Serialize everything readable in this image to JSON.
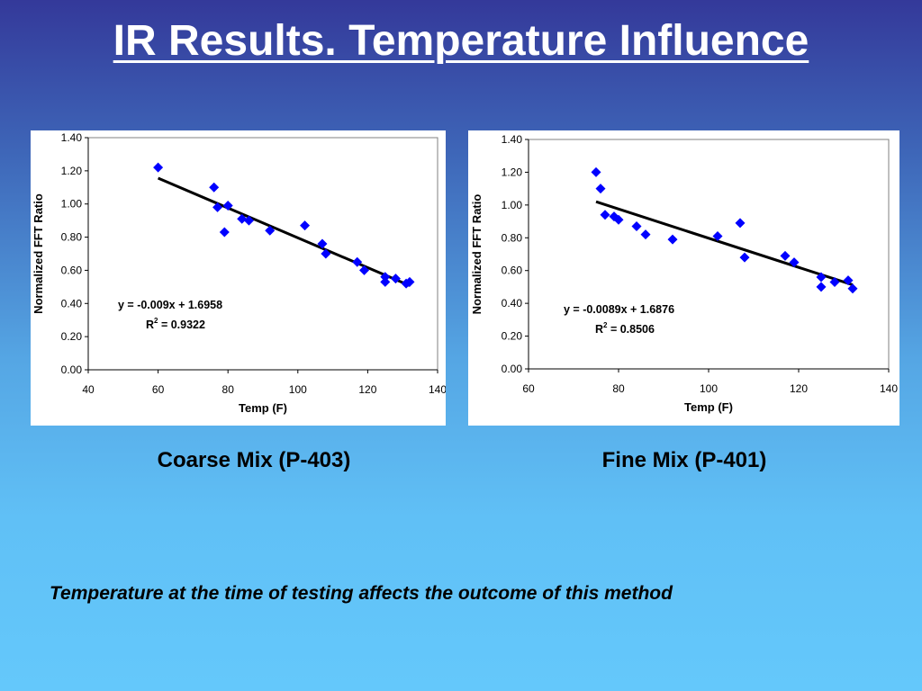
{
  "slide": {
    "title": "IR Results. Temperature Influence",
    "caption_left": "Coarse Mix (P-403)",
    "caption_right": "Fine Mix (P-401)",
    "footnote": "Temperature at the time of testing affects the outcome of this method"
  },
  "colors": {
    "marker": "#0000ff",
    "trendline": "#000000"
  },
  "chart_data": [
    {
      "type": "scatter",
      "title": "",
      "xlabel": "Temp (F)",
      "ylabel": "Normalized FFT Ratio",
      "xlim": [
        40,
        140
      ],
      "ylim": [
        0,
        1.4
      ],
      "xticks": [
        40,
        60,
        80,
        100,
        120,
        140
      ],
      "yticks": [
        0,
        0.2,
        0.4,
        0.6,
        0.8,
        1.0,
        1.2,
        1.4
      ],
      "x_tick_labels": [
        "40",
        "60",
        "80",
        "100",
        "120",
        "140"
      ],
      "y_tick_labels": [
        "0.00",
        "0.20",
        "0.40",
        "0.60",
        "0.80",
        "1.00",
        "1.20",
        "1.40"
      ],
      "grid": false,
      "points": [
        [
          60,
          1.22
        ],
        [
          76,
          1.1
        ],
        [
          77,
          0.98
        ],
        [
          79,
          0.83
        ],
        [
          80,
          0.99
        ],
        [
          84,
          0.91
        ],
        [
          86,
          0.9
        ],
        [
          92,
          0.84
        ],
        [
          102,
          0.87
        ],
        [
          107,
          0.76
        ],
        [
          108,
          0.7
        ],
        [
          117,
          0.65
        ],
        [
          119,
          0.6
        ],
        [
          125,
          0.56
        ],
        [
          125,
          0.53
        ],
        [
          128,
          0.55
        ],
        [
          131,
          0.52
        ],
        [
          132,
          0.53
        ]
      ],
      "trendline": {
        "slope": -0.009,
        "intercept": 1.6958,
        "x_range": [
          60,
          132
        ]
      },
      "equation": "y = -0.009x + 1.6958",
      "r2_prefix": "R",
      "r2_exp": "2",
      "r2_value": " = 0.9322"
    },
    {
      "type": "scatter",
      "title": "",
      "xlabel": "Temp (F)",
      "ylabel": "Normalized FFT Ratio",
      "xlim": [
        60,
        140
      ],
      "ylim": [
        0,
        1.4
      ],
      "xticks": [
        60,
        80,
        100,
        120,
        140
      ],
      "yticks": [
        0,
        0.2,
        0.4,
        0.6,
        0.8,
        1.0,
        1.2,
        1.4
      ],
      "x_tick_labels": [
        "60",
        "80",
        "100",
        "120",
        "140"
      ],
      "y_tick_labels": [
        "0.00",
        "0.20",
        "0.40",
        "0.60",
        "0.80",
        "1.00",
        "1.20",
        "1.40"
      ],
      "grid": false,
      "points": [
        [
          75,
          1.2
        ],
        [
          76,
          1.1
        ],
        [
          77,
          0.94
        ],
        [
          79,
          0.93
        ],
        [
          80,
          0.91
        ],
        [
          84,
          0.87
        ],
        [
          86,
          0.82
        ],
        [
          92,
          0.79
        ],
        [
          102,
          0.81
        ],
        [
          107,
          0.89
        ],
        [
          108,
          0.68
        ],
        [
          117,
          0.69
        ],
        [
          119,
          0.65
        ],
        [
          125,
          0.56
        ],
        [
          125,
          0.5
        ],
        [
          128,
          0.53
        ],
        [
          131,
          0.54
        ],
        [
          132,
          0.49
        ]
      ],
      "trendline": {
        "slope": -0.0089,
        "intercept": 1.6876,
        "x_range": [
          75,
          132
        ]
      },
      "equation": "y = -0.0089x + 1.6876",
      "r2_prefix": "R",
      "r2_exp": "2",
      "r2_value": " = 0.8506"
    }
  ]
}
